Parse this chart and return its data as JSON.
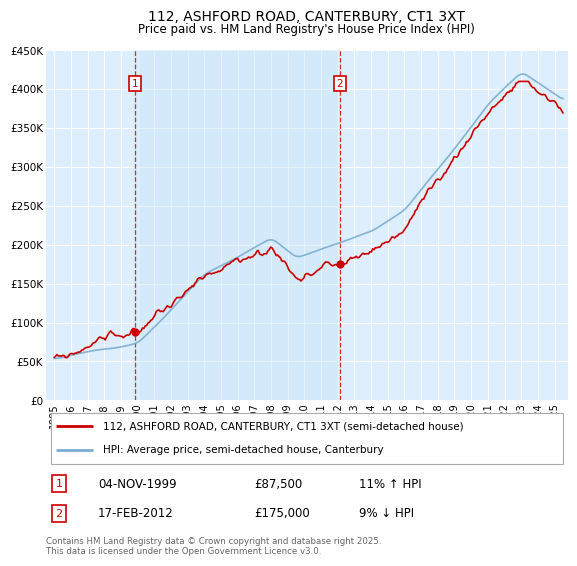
{
  "title": "112, ASHFORD ROAD, CANTERBURY, CT1 3XT",
  "subtitle": "Price paid vs. HM Land Registry's House Price Index (HPI)",
  "title_fontsize": 10.5,
  "legend_line1": "112, ASHFORD ROAD, CANTERBURY, CT1 3XT (semi-detached house)",
  "legend_line2": "HPI: Average price, semi-detached house, Canterbury",
  "sale1_date": "04-NOV-1999",
  "sale1_price": "£87,500",
  "sale1_hpi": "11% ↑ HPI",
  "sale2_date": "17-FEB-2012",
  "sale2_price": "£175,000",
  "sale2_hpi": "9% ↓ HPI",
  "footer": "Contains HM Land Registry data © Crown copyright and database right 2025.\nThis data is licensed under the Open Government Licence v3.0.",
  "red_color": "#cc0000",
  "blue_color": "#7aadcf",
  "bg_color": "#ffffff",
  "plot_bg": "#ddeeff",
  "highlight_bg": "#cce0f5",
  "grid_color": "#ffffff",
  "ylim": [
    0,
    450000
  ],
  "yticks": [
    0,
    50000,
    100000,
    150000,
    200000,
    250000,
    300000,
    350000,
    400000,
    450000
  ],
  "sale1_x_year": 1999.85,
  "sale1_y": 87500,
  "sale2_x_year": 2012.12,
  "sale2_y": 175000,
  "xmin": 1994.5,
  "xmax": 2025.8
}
